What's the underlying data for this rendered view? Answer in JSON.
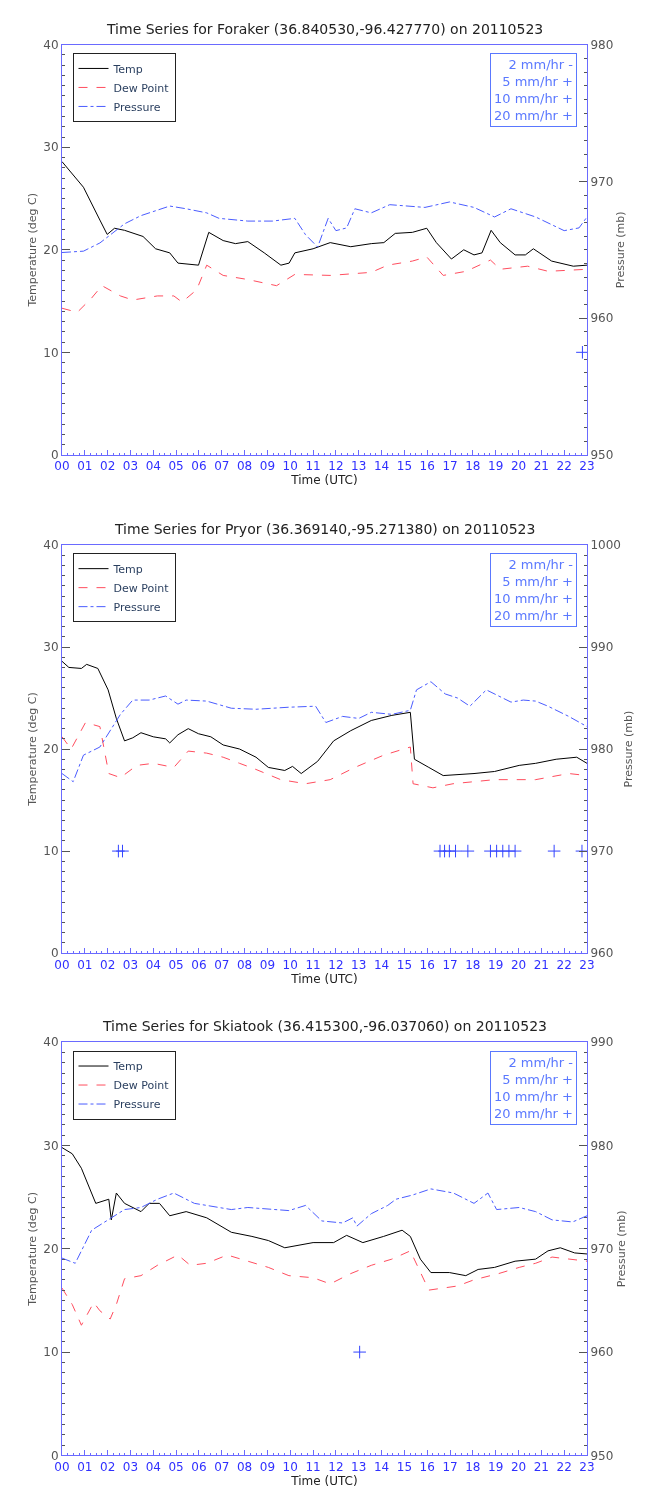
{
  "chart_data": [
    {
      "type": "line",
      "title": "Time Series for Foraker (36.840530,-96.427770) on 20110523",
      "xlabel": "Time (UTC)",
      "ylabel": "Temperature (deg C)",
      "y2label": "Pressure (mb)",
      "xlim": [
        0,
        23
      ],
      "xticks": [
        {
          "value": 0,
          "label": "00"
        },
        {
          "value": 1,
          "label": "01"
        },
        {
          "value": 2,
          "label": "02"
        },
        {
          "value": 3,
          "label": "03"
        },
        {
          "value": 4,
          "label": "04"
        },
        {
          "value": 5,
          "label": "05"
        },
        {
          "value": 6,
          "label": "06"
        },
        {
          "value": 7,
          "label": "07"
        },
        {
          "value": 8,
          "label": "08"
        },
        {
          "value": 9,
          "label": "09"
        },
        10,
        11,
        12,
        13,
        14,
        15,
        16,
        17,
        18,
        19,
        20,
        21,
        22,
        23
      ],
      "ylim": [
        0,
        40
      ],
      "yticks": [
        0,
        10,
        20,
        30,
        40
      ],
      "y2lim": [
        950,
        980
      ],
      "y2ticks": [
        950,
        960,
        970,
        980
      ],
      "legend": "top left",
      "annotations": [
        "2 mm/hr -",
        "5 mm/hr +",
        "10 mm/hr +",
        "20 mm/hr +"
      ],
      "series": [
        {
          "name": "Temp",
          "color": "#000000",
          "line_style": "solid",
          "x": [
            0,
            0.94,
            1.66,
            1.98,
            2.3,
            2.74,
            3.55,
            4.1,
            4.72,
            5.08,
            5.98,
            6.43,
            7.06,
            7.6,
            8.14,
            8.86,
            9.59,
            9.95,
            10.2,
            11.0,
            11.75,
            12.65,
            13.55,
            14.1,
            14.6,
            15.35,
            15.98,
            16.4,
            17.06,
            17.6,
            18.05,
            18.4,
            18.8,
            19.2,
            19.85,
            20.3,
            20.65,
            21.45,
            22.4,
            23.0
          ],
          "values": [
            28.6,
            26.1,
            22.9,
            21.5,
            22.1,
            21.9,
            21.3,
            20.1,
            19.7,
            18.7,
            18.5,
            21.7,
            20.9,
            20.6,
            20.8,
            19.7,
            18.5,
            18.7,
            19.7,
            20.1,
            20.7,
            20.3,
            20.6,
            20.7,
            21.6,
            21.7,
            22.1,
            20.7,
            19.1,
            20.0,
            19.5,
            19.7,
            21.9,
            20.7,
            19.5,
            19.5,
            20.1,
            18.9,
            18.4,
            18.5
          ]
        },
        {
          "name": "Dew Point",
          "color": "#ff4d5e",
          "line_style": "dashed",
          "x": [
            0,
            0.67,
            1.3,
            1.75,
            2.56,
            3.1,
            4.18,
            4.9,
            5.26,
            5.9,
            6.34,
            7.06,
            8.14,
            9.4,
            10.2,
            11.75,
            13.55,
            14.27,
            15.35,
            15.98,
            16.7,
            17.7,
            18.77,
            19.2,
            20.4,
            21.3,
            23.0
          ],
          "values": [
            14.3,
            13.9,
            15.3,
            16.5,
            15.5,
            15.1,
            15.5,
            15.5,
            14.9,
            16.1,
            18.5,
            17.5,
            17.1,
            16.5,
            17.6,
            17.5,
            17.8,
            18.5,
            18.9,
            19.3,
            17.5,
            17.9,
            19.0,
            18.1,
            18.4,
            17.9,
            18.1
          ]
        },
        {
          "name": "Pressure",
          "color": "#4a5cff",
          "line_style": "dashdot",
          "axis": "y2",
          "x": [
            0,
            0.94,
            1.66,
            2.74,
            3.46,
            4.72,
            5.44,
            6.34,
            6.88,
            8.14,
            9.22,
            10.2,
            10.67,
            11.2,
            11.66,
            12.0,
            12.47,
            12.83,
            13.55,
            14.36,
            15.9,
            16.98,
            18.05,
            18.95,
            19.67,
            20.75,
            22.0,
            22.65,
            23.0
          ],
          "values": [
            964.8,
            964.9,
            965.5,
            966.9,
            967.5,
            968.2,
            968.0,
            967.7,
            967.3,
            967.1,
            967.1,
            967.3,
            966.1,
            965.2,
            967.3,
            966.4,
            966.6,
            968.0,
            967.7,
            968.3,
            968.1,
            968.5,
            968.1,
            967.4,
            968.0,
            967.4,
            966.4,
            966.6,
            967.4
          ]
        },
        {
          "type": "scatter",
          "marker": "cross",
          "color": "#3344ff",
          "x": [
            22.8
          ],
          "values": [
            10
          ]
        }
      ]
    },
    {
      "type": "line",
      "title": "Time Series for Pryor (36.369140,-95.271380) on 20110523",
      "xlabel": "Time (UTC)",
      "ylabel": "Temperature (deg C)",
      "y2label": "Pressure (mb)",
      "xlim": [
        0,
        23
      ],
      "xticks": [
        {
          "value": 0,
          "label": "00"
        },
        {
          "value": 1,
          "label": "01"
        },
        {
          "value": 2,
          "label": "02"
        },
        {
          "value": 3,
          "label": "03"
        },
        {
          "value": 4,
          "label": "04"
        },
        {
          "value": 5,
          "label": "05"
        },
        {
          "value": 6,
          "label": "06"
        },
        {
          "value": 7,
          "label": "07"
        },
        {
          "value": 8,
          "label": "08"
        },
        {
          "value": 9,
          "label": "09"
        },
        10,
        11,
        12,
        13,
        14,
        15,
        16,
        17,
        18,
        19,
        20,
        21,
        22,
        23
      ],
      "ylim": [
        0,
        40
      ],
      "yticks": [
        0,
        10,
        20,
        30,
        40
      ],
      "y2lim": [
        960,
        1000
      ],
      "y2ticks": [
        960,
        970,
        980,
        990,
        1000
      ],
      "legend": "top left",
      "annotations": [
        "2 mm/hr -",
        "5 mm/hr +",
        "10 mm/hr +",
        "20 mm/hr +"
      ],
      "series": [
        {
          "name": "Temp",
          "color": "#000000",
          "line_style": "solid",
          "x": [
            0,
            0.3,
            0.85,
            1.08,
            1.57,
            2.02,
            2.38,
            2.74,
            3.1,
            3.46,
            4.0,
            4.54,
            4.72,
            5.08,
            5.53,
            5.98,
            6.52,
            7.06,
            7.78,
            8.5,
            9.04,
            9.76,
            10.1,
            10.48,
            11.2,
            11.9,
            12.65,
            13.55,
            14.45,
            15.26,
            15.44,
            16.07,
            16.7,
            18.05,
            18.95,
            20.03,
            20.75,
            21.65,
            22.55,
            23.0
          ],
          "values": [
            28.6,
            28.0,
            27.9,
            28.3,
            27.9,
            25.8,
            23.0,
            20.8,
            21.1,
            21.6,
            21.2,
            21.0,
            20.6,
            21.4,
            22.0,
            21.5,
            21.2,
            20.4,
            20.0,
            19.2,
            18.2,
            17.9,
            18.3,
            17.6,
            18.8,
            20.8,
            21.8,
            22.8,
            23.3,
            23.6,
            19.0,
            18.2,
            17.4,
            17.6,
            17.8,
            18.4,
            18.6,
            19.0,
            19.2,
            18.6
          ]
        },
        {
          "name": "Dew Point",
          "color": "#ff4d5e",
          "line_style": "dashed",
          "x": [
            0,
            0.4,
            1.03,
            1.66,
            2.05,
            2.56,
            3.28,
            4.0,
            4.9,
            5.53,
            6.34,
            7.06,
            7.78,
            8.5,
            9.58,
            10.67,
            11.75,
            12.83,
            14.09,
            15.26,
            15.38,
            16.25,
            17.13,
            18.95,
            20.75,
            22.2,
            23.0
          ],
          "values": [
            21.2,
            20.0,
            22.6,
            22.2,
            17.6,
            17.2,
            18.4,
            18.6,
            18.2,
            19.8,
            19.6,
            19.2,
            18.6,
            18.0,
            17.0,
            16.6,
            17.0,
            18.2,
            19.4,
            20.2,
            16.6,
            16.2,
            16.6,
            17.0,
            17.0,
            17.6,
            17.4
          ]
        },
        {
          "name": "Pressure",
          "color": "#4a5cff",
          "line_style": "dashdot",
          "axis": "y2",
          "x": [
            0,
            0.49,
            0.94,
            1.66,
            2.56,
            3.1,
            3.82,
            4.54,
            5.08,
            5.44,
            6.34,
            7.42,
            8.5,
            9.94,
            11.11,
            11.56,
            12.29,
            13.0,
            13.55,
            14.45,
            15.26,
            15.53,
            16.16,
            16.79,
            17.33,
            17.87,
            18.59,
            19.67,
            20.21,
            20.75,
            21.29,
            22.2,
            23.0
          ],
          "values": [
            977.6,
            976.8,
            979.4,
            980.2,
            983.4,
            984.8,
            984.8,
            985.2,
            984.4,
            984.8,
            984.7,
            984.0,
            983.9,
            984.1,
            984.2,
            982.6,
            983.2,
            983.0,
            983.6,
            983.4,
            983.8,
            985.8,
            986.6,
            985.4,
            985.0,
            984.2,
            985.8,
            984.6,
            984.8,
            984.7,
            984.2,
            983.2,
            982.2
          ]
        },
        {
          "type": "scatter",
          "marker": "cross",
          "color": "#3344ff",
          "x": [
            2.47,
            2.65,
            16.56,
            16.76,
            16.97,
            17.24,
            17.78,
            18.77,
            19.04,
            19.31,
            19.58,
            19.85,
            21.56,
            22.78
          ],
          "values": [
            10,
            10,
            10,
            10,
            10,
            10,
            10,
            10,
            10,
            10,
            10,
            10,
            10,
            10
          ]
        }
      ]
    },
    {
      "type": "line",
      "title": "Time Series for Skiatook (36.415300,-96.037060) on 20110523",
      "xlabel": "Time (UTC)",
      "ylabel": "Temperature (deg C)",
      "y2label": "Pressure (mb)",
      "xlim": [
        0,
        23
      ],
      "xticks": [
        {
          "value": 0,
          "label": "00"
        },
        {
          "value": 1,
          "label": "01"
        },
        {
          "value": 2,
          "label": "02"
        },
        {
          "value": 3,
          "label": "03"
        },
        {
          "value": 4,
          "label": "04"
        },
        {
          "value": 5,
          "label": "05"
        },
        {
          "value": 6,
          "label": "06"
        },
        {
          "value": 7,
          "label": "07"
        },
        {
          "value": 8,
          "label": "08"
        },
        {
          "value": 9,
          "label": "09"
        },
        10,
        11,
        12,
        13,
        14,
        15,
        16,
        17,
        18,
        19,
        20,
        21,
        22,
        23
      ],
      "ylim": [
        0,
        40
      ],
      "yticks": [
        0,
        10,
        20,
        30,
        40
      ],
      "y2lim": [
        950,
        990
      ],
      "y2ticks": [
        950,
        960,
        970,
        980,
        990
      ],
      "legend": "top left",
      "annotations": [
        "2 mm/hr -",
        "5 mm/hr +",
        "10 mm/hr +",
        "20 mm/hr +"
      ],
      "series": [
        {
          "name": "Temp",
          "color": "#000000",
          "line_style": "solid",
          "x": [
            0,
            0.45,
            0.85,
            1.48,
            2.05,
            2.16,
            2.38,
            2.74,
            3.46,
            3.82,
            4.27,
            4.72,
            5.44,
            6.34,
            7.42,
            8.32,
            9.04,
            9.76,
            11.0,
            11.9,
            12.47,
            13.18,
            14.09,
            14.9,
            15.26,
            15.7,
            16.16,
            16.97,
            17.69,
            18.23,
            18.95,
            19.85,
            20.75,
            21.29,
            21.83,
            22.46,
            23.0
          ],
          "values": [
            29.8,
            29.2,
            27.8,
            24.4,
            24.8,
            22.8,
            25.4,
            24.4,
            23.6,
            24.4,
            24.4,
            23.2,
            23.6,
            23.0,
            21.6,
            21.2,
            20.8,
            20.1,
            20.6,
            20.6,
            21.3,
            20.6,
            21.2,
            21.8,
            21.2,
            19.0,
            17.7,
            17.7,
            17.4,
            18.0,
            18.2,
            18.8,
            19.0,
            19.8,
            20.1,
            19.6,
            19.5
          ]
        },
        {
          "name": "Dew Point",
          "color": "#ff4d5e",
          "line_style": "dashed",
          "x": [
            0,
            0.45,
            0.85,
            1.39,
            1.66,
            2.11,
            2.38,
            2.74,
            3.46,
            4.18,
            5.08,
            5.62,
            6.34,
            7.24,
            8.14,
            9.04,
            9.94,
            11.0,
            11.75,
            12.65,
            13.55,
            14.45,
            15.26,
            16.07,
            17.33,
            18.05,
            19.13,
            20.03,
            20.75,
            21.47,
            23.0
          ],
          "values": [
            16.2,
            14.6,
            12.6,
            14.8,
            14.0,
            13.2,
            14.6,
            17.1,
            17.4,
            18.4,
            19.4,
            18.4,
            18.6,
            19.4,
            18.8,
            18.2,
            17.4,
            17.2,
            16.6,
            17.6,
            18.4,
            19.0,
            19.8,
            16.0,
            16.4,
            17.0,
            17.6,
            18.2,
            18.6,
            19.2,
            18.8
          ]
        },
        {
          "name": "Pressure",
          "color": "#4a5cff",
          "line_style": "dashdot",
          "axis": "y2",
          "x": [
            0,
            0.58,
            1.3,
            2.02,
            2.74,
            3.46,
            4.18,
            4.9,
            5.8,
            6.34,
            7.42,
            8.14,
            9.94,
            10.67,
            11.38,
            12.29,
            12.74,
            12.92,
            13.55,
            14.27,
            14.63,
            15.35,
            16.16,
            17.15,
            18.05,
            18.66,
            19.04,
            20.03,
            20.75,
            21.47,
            22.37,
            23.0
          ],
          "values": [
            969.1,
            968.6,
            971.8,
            972.8,
            973.8,
            974.0,
            974.8,
            975.4,
            974.4,
            974.2,
            973.8,
            974.0,
            973.7,
            974.2,
            972.7,
            972.5,
            973.0,
            972.2,
            973.4,
            974.2,
            974.8,
            975.2,
            975.8,
            975.4,
            974.4,
            975.4,
            973.8,
            974.0,
            973.6,
            972.8,
            972.6,
            973.2
          ]
        },
        {
          "type": "scatter",
          "marker": "cross",
          "color": "#3344ff",
          "x": [
            13.04
          ],
          "values": [
            10
          ]
        }
      ]
    }
  ]
}
